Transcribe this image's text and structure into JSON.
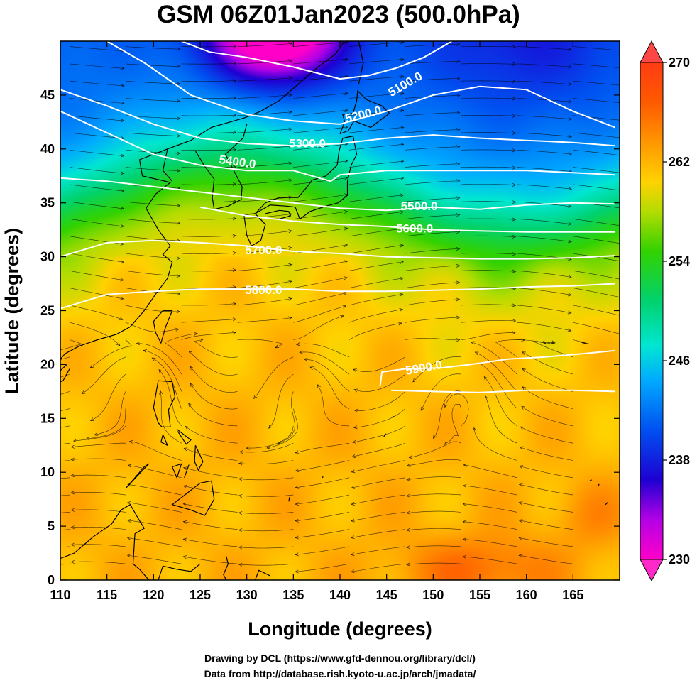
{
  "chart_data": {
    "type": "heatmap",
    "title": "GSM 06Z01Jan2023 (500.0hPa)",
    "xlabel": "Longitude (degrees)",
    "ylabel": "Latitude  (degrees)",
    "xlim": [
      110,
      170
    ],
    "ylim": [
      0,
      50
    ],
    "x_ticks": [
      110,
      115,
      120,
      125,
      130,
      135,
      140,
      145,
      150,
      155,
      160,
      165
    ],
    "y_ticks": [
      0,
      5,
      10,
      15,
      20,
      25,
      30,
      35,
      40,
      45
    ],
    "colorbar": {
      "min": 230,
      "max": 270,
      "ticks": [
        230,
        238,
        246,
        254,
        262,
        270
      ]
    },
    "contours": [
      {
        "label": "5100.0",
        "label_lon": 147.0,
        "label_lat": 46.0,
        "points": [
          [
            123.0,
            50.0
          ],
          [
            126.0,
            49.0
          ],
          [
            130.0,
            48.5
          ],
          [
            135.0,
            47.6
          ],
          [
            140.0,
            46.5
          ],
          [
            143.0,
            46.8
          ],
          [
            146.0,
            47.5
          ],
          [
            149.0,
            48.5
          ],
          [
            151.0,
            49.5
          ],
          [
            152.0,
            50.0
          ]
        ]
      },
      {
        "label": "5200.0",
        "label_lon": 142.5,
        "label_lat": 43.2,
        "points": [
          [
            115.0,
            50.0
          ],
          [
            119.0,
            48.0
          ],
          [
            124.0,
            45.0
          ],
          [
            130.0,
            43.2
          ],
          [
            135.0,
            42.6
          ],
          [
            140.0,
            42.3
          ],
          [
            145.0,
            43.5
          ],
          [
            150.0,
            45.0
          ],
          [
            155.0,
            45.8
          ],
          [
            160.0,
            45.5
          ],
          [
            165.0,
            43.5
          ],
          [
            169.5,
            42.0
          ]
        ]
      },
      {
        "label": "5300.0",
        "label_lon": 136.5,
        "label_lat": 40.5,
        "points": [
          [
            110.0,
            45.5
          ],
          [
            115.0,
            44.0
          ],
          [
            120.0,
            42.3
          ],
          [
            125.0,
            41.0
          ],
          [
            130.0,
            40.5
          ],
          [
            135.0,
            40.3
          ],
          [
            140.0,
            40.5
          ],
          [
            145.0,
            41.0
          ],
          [
            150.0,
            41.3
          ],
          [
            155.0,
            41.0
          ],
          [
            160.0,
            40.8
          ],
          [
            165.0,
            40.6
          ],
          [
            169.5,
            40.3
          ]
        ]
      },
      {
        "label": "5400.0",
        "label_lon": 129.0,
        "label_lat": 38.8,
        "points": [
          [
            110.0,
            43.5
          ],
          [
            115.0,
            41.5
          ],
          [
            120.0,
            39.5
          ],
          [
            125.0,
            38.5
          ],
          [
            130.0,
            38.0
          ],
          [
            135.0,
            38.0
          ],
          [
            139.0,
            37.0
          ],
          [
            140.0,
            37.6
          ],
          [
            145.0,
            38.0
          ],
          [
            150.0,
            38.0
          ],
          [
            155.0,
            38.0
          ],
          [
            160.0,
            38.0
          ],
          [
            165.0,
            37.8
          ],
          [
            169.5,
            37.6
          ]
        ]
      },
      {
        "label": "5500.0",
        "label_lon": 148.5,
        "label_lat": 34.7,
        "points": [
          [
            110.0,
            37.3
          ],
          [
            115.0,
            37.0
          ],
          [
            120.0,
            36.5
          ],
          [
            125.0,
            36.0
          ],
          [
            130.0,
            35.5
          ],
          [
            135.0,
            35.0
          ],
          [
            140.0,
            34.5
          ],
          [
            145.0,
            34.3
          ],
          [
            150.0,
            34.6
          ],
          [
            155.0,
            34.4
          ],
          [
            160.0,
            34.8
          ],
          [
            165.0,
            35.0
          ],
          [
            169.5,
            34.9
          ]
        ]
      },
      {
        "label": "5600.0",
        "label_lon": 148.0,
        "label_lat": 32.6,
        "points": [
          [
            125.0,
            34.6
          ],
          [
            130.0,
            33.8
          ],
          [
            135.0,
            33.3
          ],
          [
            140.0,
            33.0
          ],
          [
            145.0,
            32.8
          ],
          [
            150.0,
            32.5
          ],
          [
            155.0,
            32.4
          ],
          [
            160.0,
            32.3
          ],
          [
            165.0,
            32.3
          ],
          [
            169.5,
            32.3
          ]
        ]
      },
      {
        "label": "5700.0",
        "label_lon": 131.8,
        "label_lat": 30.6,
        "points": [
          [
            110.0,
            30.0
          ],
          [
            115.0,
            31.3
          ],
          [
            120.0,
            31.5
          ],
          [
            125.0,
            31.3
          ],
          [
            130.0,
            31.0
          ],
          [
            135.0,
            30.5
          ],
          [
            140.0,
            30.3
          ],
          [
            145.0,
            30.0
          ],
          [
            150.0,
            29.9
          ],
          [
            155.0,
            29.8
          ],
          [
            160.0,
            29.8
          ],
          [
            165.0,
            29.9
          ],
          [
            169.5,
            30.1
          ]
        ]
      },
      {
        "label": "5800.0",
        "label_lon": 131.8,
        "label_lat": 26.9,
        "points": [
          [
            110.0,
            25.2
          ],
          [
            115.0,
            26.5
          ],
          [
            120.0,
            26.8
          ],
          [
            125.0,
            27.0
          ],
          [
            130.0,
            27.0
          ],
          [
            135.0,
            27.0
          ],
          [
            140.0,
            26.8
          ],
          [
            145.0,
            26.8
          ],
          [
            150.0,
            26.9
          ],
          [
            155.0,
            27.0
          ],
          [
            160.0,
            27.2
          ],
          [
            165.0,
            27.3
          ],
          [
            169.5,
            27.5
          ]
        ]
      },
      {
        "label": "5900.0",
        "label_lon": 149.0,
        "label_lat": 19.7,
        "points": [
          [
            144.3,
            18.0
          ],
          [
            144.5,
            19.3
          ],
          [
            147.0,
            19.6
          ],
          [
            151.0,
            19.7
          ],
          [
            154.0,
            20.0
          ],
          [
            158.0,
            20.5
          ],
          [
            162.0,
            20.7
          ],
          [
            166.0,
            21.0
          ],
          [
            169.5,
            21.3
          ],
          null,
          [
            145.5,
            17.6
          ],
          [
            150.0,
            17.5
          ],
          [
            155.0,
            17.4
          ],
          [
            160.0,
            17.6
          ],
          [
            165.0,
            17.6
          ],
          [
            169.5,
            17.5
          ]
        ]
      }
    ],
    "coastlines": [
      [
        [
          122.0,
          37.0
        ],
        [
          121.0,
          38.0
        ],
        [
          121.5,
          40.0
        ],
        [
          124.0,
          40.8
        ],
        [
          126.2,
          42.0
        ],
        [
          129.8,
          42.9
        ],
        [
          131.5,
          43.5
        ],
        [
          133.5,
          44.5
        ],
        [
          137.5,
          47.5
        ],
        [
          139.5,
          48.8
        ],
        [
          140.5,
          50.0
        ]
      ],
      [
        [
          121.5,
          40.0
        ],
        [
          118.5,
          39.0
        ],
        [
          118.8,
          37.5
        ],
        [
          121.8,
          36.9
        ],
        [
          120.2,
          35.8
        ],
        [
          119.2,
          34.5
        ],
        [
          120.5,
          32.5
        ],
        [
          121.8,
          31.0
        ],
        [
          121.0,
          30.2
        ],
        [
          122.0,
          29.5
        ],
        [
          121.5,
          28.0
        ],
        [
          120.2,
          26.5
        ],
        [
          119.0,
          25.0
        ],
        [
          117.5,
          23.5
        ],
        [
          116.0,
          22.8
        ],
        [
          114.0,
          22.3
        ],
        [
          112.0,
          21.7
        ],
        [
          110.5,
          21.0
        ],
        [
          110.0,
          20.5
        ]
      ],
      [
        [
          124.5,
          39.8
        ],
        [
          125.4,
          38.5
        ],
        [
          126.5,
          37.2
        ],
        [
          126.3,
          35.5
        ],
        [
          126.5,
          34.4
        ],
        [
          128.0,
          34.7
        ],
        [
          129.4,
          35.3
        ],
        [
          129.5,
          36.5
        ],
        [
          128.6,
          38.0
        ],
        [
          127.7,
          39.5
        ],
        [
          129.6,
          41.0
        ],
        [
          130.0,
          42.3
        ]
      ],
      [
        [
          110.7,
          20.0
        ],
        [
          109.7,
          19.2
        ],
        [
          109.5,
          18.2
        ],
        [
          110.3,
          18.5
        ],
        [
          111.0,
          19.6
        ]
      ],
      [
        [
          120.2,
          23.0
        ],
        [
          120.0,
          24.0
        ],
        [
          121.0,
          25.0
        ],
        [
          122.0,
          25.0
        ],
        [
          121.3,
          23.5
        ],
        [
          120.8,
          22.0
        ],
        [
          120.2,
          23.0
        ]
      ],
      [
        [
          129.7,
          33.9
        ],
        [
          130.9,
          34.0
        ],
        [
          132.0,
          33.0
        ],
        [
          131.5,
          31.5
        ],
        [
          130.5,
          31.0
        ],
        [
          130.0,
          32.0
        ],
        [
          129.7,
          33.9
        ]
      ],
      [
        [
          132.0,
          33.6
        ],
        [
          133.5,
          33.5
        ],
        [
          134.7,
          33.8
        ],
        [
          134.5,
          34.2
        ],
        [
          133.5,
          34.3
        ],
        [
          132.0,
          34.0
        ]
      ],
      [
        [
          130.9,
          34.0
        ],
        [
          132.5,
          34.8
        ],
        [
          134.3,
          34.7
        ],
        [
          135.2,
          34.6
        ],
        [
          135.7,
          33.5
        ],
        [
          136.8,
          34.2
        ],
        [
          138.5,
          34.7
        ],
        [
          139.8,
          35.0
        ],
        [
          140.8,
          35.7
        ],
        [
          140.8,
          37.0
        ],
        [
          141.2,
          38.5
        ],
        [
          141.8,
          39.5
        ],
        [
          141.4,
          41.2
        ],
        [
          140.3,
          41.0
        ],
        [
          139.9,
          39.8
        ],
        [
          139.7,
          38.5
        ],
        [
          138.5,
          37.5
        ],
        [
          137.0,
          37.1
        ],
        [
          136.5,
          36.5
        ],
        [
          135.5,
          35.5
        ],
        [
          133.5,
          35.5
        ],
        [
          132.0,
          35.0
        ],
        [
          130.9,
          34.0
        ]
      ],
      [
        [
          140.0,
          41.4
        ],
        [
          140.5,
          42.5
        ],
        [
          140.3,
          43.2
        ],
        [
          141.4,
          43.3
        ],
        [
          141.8,
          44.5
        ],
        [
          141.9,
          45.4
        ],
        [
          142.8,
          44.6
        ],
        [
          144.5,
          44.0
        ],
        [
          145.3,
          43.3
        ],
        [
          143.3,
          42.0
        ],
        [
          141.5,
          42.6
        ],
        [
          140.9,
          41.7
        ],
        [
          140.0,
          41.4
        ]
      ],
      [
        [
          142.0,
          46.0
        ],
        [
          142.5,
          48.0
        ],
        [
          142.0,
          50.0
        ]
      ],
      [
        [
          120.5,
          18.5
        ],
        [
          122.0,
          18.4
        ],
        [
          122.3,
          17.0
        ],
        [
          121.6,
          15.8
        ],
        [
          121.8,
          14.2
        ],
        [
          120.9,
          14.2
        ],
        [
          120.5,
          14.6
        ],
        [
          120.0,
          16.0
        ],
        [
          120.5,
          18.5
        ]
      ],
      [
        [
          122.5,
          14.0
        ],
        [
          124.0,
          13.0
        ],
        [
          123.5,
          12.6
        ],
        [
          122.6,
          13.8
        ]
      ],
      [
        [
          121.0,
          13.5
        ],
        [
          121.5,
          12.5
        ],
        [
          120.8,
          12.8
        ],
        [
          121.0,
          13.5
        ]
      ],
      [
        [
          124.5,
          12.5
        ],
        [
          125.3,
          11.0
        ],
        [
          124.8,
          10.2
        ],
        [
          124.4,
          11.0
        ],
        [
          124.5,
          12.5
        ]
      ],
      [
        [
          123.0,
          10.8
        ],
        [
          122.0,
          10.5
        ],
        [
          122.5,
          9.5
        ],
        [
          123.0,
          10.8
        ]
      ],
      [
        [
          123.8,
          10.7
        ],
        [
          123.3,
          9.5
        ],
        [
          123.8,
          10.7
        ]
      ],
      [
        [
          117.0,
          8.5
        ],
        [
          119.5,
          10.8
        ],
        [
          119.0,
          10.5
        ],
        [
          117.0,
          8.5
        ]
      ],
      [
        [
          123.5,
          8.0
        ],
        [
          125.0,
          9.0
        ],
        [
          126.2,
          9.2
        ],
        [
          126.5,
          7.5
        ],
        [
          125.5,
          6.0
        ],
        [
          124.0,
          6.5
        ],
        [
          122.0,
          7.0
        ],
        [
          123.5,
          8.0
        ]
      ],
      [
        [
          110.0,
          2.0
        ],
        [
          111.5,
          2.5
        ],
        [
          113.5,
          4.0
        ],
        [
          115.5,
          5.2
        ],
        [
          116.5,
          6.5
        ],
        [
          117.5,
          7.0
        ],
        [
          118.5,
          5.5
        ],
        [
          119.0,
          4.8
        ],
        [
          118.0,
          4.3
        ],
        [
          117.8,
          1.5
        ],
        [
          118.5,
          1.0
        ],
        [
          119.5,
          0.0
        ]
      ],
      [
        [
          120.5,
          0.0
        ],
        [
          121.0,
          1.3
        ],
        [
          122.5,
          1.0
        ],
        [
          124.0,
          0.8
        ],
        [
          125.0,
          1.5
        ]
      ],
      [
        [
          127.8,
          2.2
        ],
        [
          128.0,
          1.5
        ],
        [
          127.5,
          0.5
        ],
        [
          127.8,
          0.0
        ]
      ],
      [
        [
          130.9,
          0.0
        ],
        [
          131.3,
          0.9
        ],
        [
          132.5,
          0.4
        ]
      ],
      [
        [
          134.5,
          7.3
        ],
        [
          134.6,
          7.7
        ]
      ],
      [
        [
          138.1,
          9.5
        ],
        [
          138.2,
          9.6
        ]
      ],
      [
        [
          144.7,
          13.3
        ],
        [
          144.9,
          13.6
        ]
      ],
      [
        [
          145.7,
          15.1
        ],
        [
          145.8,
          15.2
        ]
      ],
      [
        [
          167.7,
          8.7
        ],
        [
          167.8,
          8.9
        ]
      ],
      [
        [
          166.8,
          9.2
        ],
        [
          167.0,
          9.3
        ]
      ],
      [
        [
          168.5,
          7.0
        ],
        [
          168.7,
          7.2
        ]
      ]
    ]
  },
  "credit": {
    "line1": "Drawing by DCL (https://www.gfd-dennou.org/library/dcl/)",
    "line2": "Data from http://database.rish.kyoto-u.ac.jp/arch/jmadata/"
  },
  "colors": {
    "frame": "#000000",
    "contour": "#ffffff",
    "streamline": "#000000",
    "background": "#ffffff"
  }
}
